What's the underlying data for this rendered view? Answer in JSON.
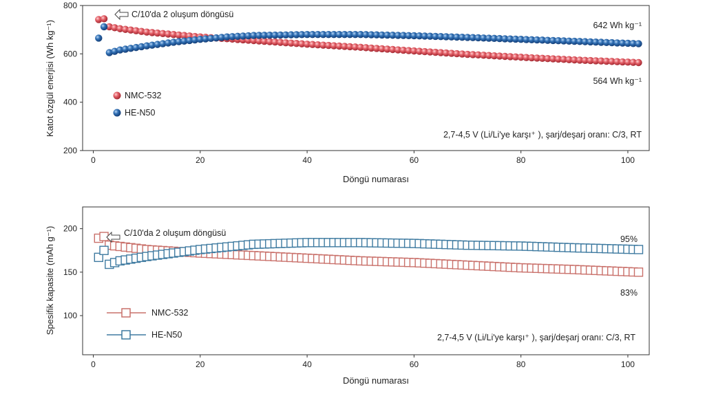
{
  "chart_data": [
    {
      "type": "scatter",
      "xlabel": "Döngü numarası",
      "ylabel": "Katot özgül enerjisi (Wh kg⁻¹)",
      "xlim": [
        -2,
        104
      ],
      "ylim": [
        200,
        800
      ],
      "xticks": [
        0,
        20,
        40,
        60,
        80,
        100
      ],
      "yticks": [
        200,
        400,
        600,
        800
      ],
      "grid": false,
      "legend_position": "left",
      "legend": [
        {
          "name": "NMC-532",
          "color": "#e0555e"
        },
        {
          "name": "HE-N50",
          "color": "#2e6db0"
        }
      ],
      "annotations": {
        "formation": "C/10'da 2 oluşum döngüsü",
        "conditions": "2,7-4,5 V (Li/Li'ye karşı⁺ ), şarj/deşarj oranı: C/3, RT",
        "end_top": "642 Wh kg⁻¹",
        "end_bottom": "564 Wh kg⁻¹"
      },
      "series": [
        {
          "name": "NMC-532",
          "marker": "sphere",
          "color": "#e0555e",
          "formation": [
            [
              1,
              742
            ],
            [
              2,
              745
            ]
          ],
          "start": [
            3,
            712
          ],
          "end": [
            102,
            564
          ],
          "profile": [
            [
              3,
              712
            ],
            [
              5,
              704
            ],
            [
              10,
              690
            ],
            [
              20,
              670
            ],
            [
              30,
              655
            ],
            [
              40,
              640
            ],
            [
              50,
              627
            ],
            [
              60,
              612
            ],
            [
              70,
              598
            ],
            [
              80,
              586
            ],
            [
              90,
              575
            ],
            [
              102,
              564
            ]
          ]
        },
        {
          "name": "HE-N50",
          "marker": "sphere",
          "color": "#2e6db0",
          "formation": [
            [
              1,
              665
            ],
            [
              2,
              712
            ]
          ],
          "start": [
            3,
            605
          ],
          "end": [
            102,
            642
          ],
          "profile": [
            [
              3,
              605
            ],
            [
              5,
              616
            ],
            [
              10,
              633
            ],
            [
              15,
              648
            ],
            [
              20,
              660
            ],
            [
              25,
              670
            ],
            [
              30,
              676
            ],
            [
              40,
              680
            ],
            [
              50,
              680
            ],
            [
              60,
              675
            ],
            [
              70,
              668
            ],
            [
              80,
              660
            ],
            [
              90,
              652
            ],
            [
              102,
              642
            ]
          ]
        }
      ]
    },
    {
      "type": "scatter",
      "xlabel": "Döngü numarası",
      "ylabel": "Spesifik kapasite (mAh g⁻¹)",
      "xlim": [
        -2,
        104
      ],
      "ylim": [
        55,
        225
      ],
      "xticks": [
        0,
        20,
        40,
        60,
        80,
        100
      ],
      "yticks": [
        100,
        150,
        200
      ],
      "grid": false,
      "legend_position": "lower-left",
      "legend": [
        {
          "name": "NMC-532",
          "color": "#c9706a"
        },
        {
          "name": "HE-N50",
          "color": "#3e7aa0"
        }
      ],
      "annotations": {
        "formation": "C/10'da 2 oluşum döngüsü",
        "conditions": "2,7-4,5 V (Li/Li'ye karşı⁺ ), şarj/deşarj oranı: C/3, RT",
        "end_top": "95%",
        "end_bottom": "83%"
      },
      "series": [
        {
          "name": "NMC-532",
          "marker": "open-square",
          "color": "#c9706a",
          "formation": [
            [
              1,
              189
            ],
            [
              2,
              191
            ]
          ],
          "start": [
            3,
            181
          ],
          "end": [
            102,
            150
          ],
          "profile": [
            [
              3,
              181
            ],
            [
              10,
              176
            ],
            [
              20,
              172
            ],
            [
              30,
              169
            ],
            [
              40,
              166
            ],
            [
              50,
              163
            ],
            [
              60,
              161
            ],
            [
              70,
              158
            ],
            [
              80,
              155
            ],
            [
              90,
              153
            ],
            [
              102,
              150
            ]
          ]
        },
        {
          "name": "HE-N50",
          "marker": "open-square",
          "color": "#3e7aa0",
          "formation": [
            [
              1,
              167
            ],
            [
              2,
              175
            ]
          ],
          "start": [
            3,
            159
          ],
          "end": [
            102,
            176
          ],
          "profile": [
            [
              3,
              159
            ],
            [
              5,
              163
            ],
            [
              10,
              168
            ],
            [
              15,
              172
            ],
            [
              20,
              176
            ],
            [
              25,
              179
            ],
            [
              30,
              182
            ],
            [
              40,
              184
            ],
            [
              50,
              184
            ],
            [
              60,
              183
            ],
            [
              70,
              181
            ],
            [
              80,
              180
            ],
            [
              90,
              178
            ],
            [
              102,
              176
            ]
          ]
        }
      ]
    }
  ]
}
